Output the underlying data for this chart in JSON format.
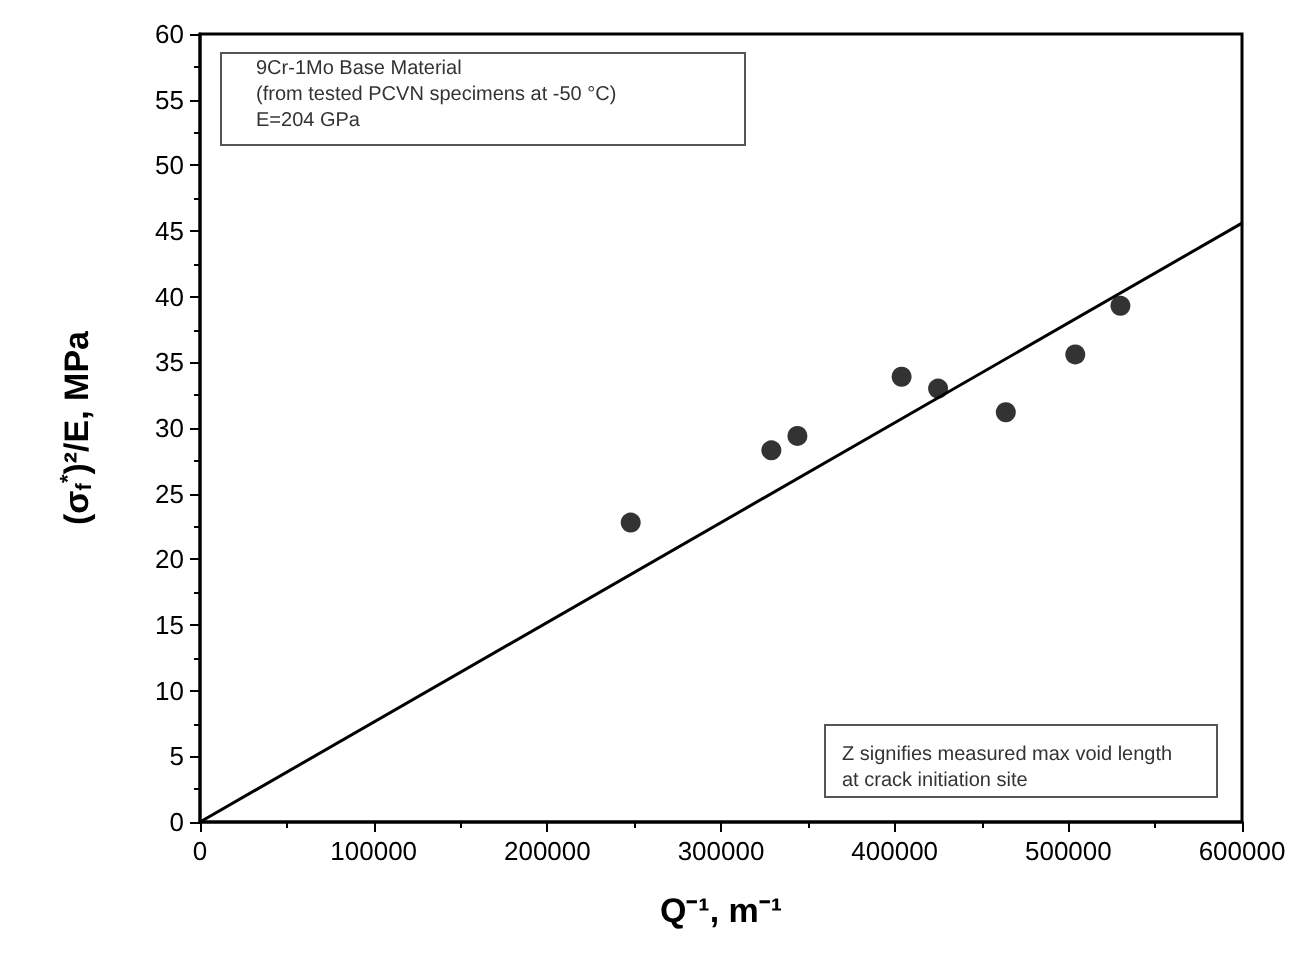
{
  "chart_data": {
    "type": "scatter",
    "xlabel": "Q⁻¹, m⁻¹",
    "ylabel": "(σ$_{f}$$^{*}$)²/E, MPa",
    "annotations": [
      "9Cr-1Mo Base Material",
      "(from tested PCVN specimens at -50 °C)",
      "E=204 GPa",
      "Z signifies measured max void length at crack initiation site"
    ],
    "series": [
      {
        "color": "#000000",
        "marker": "circle",
        "x": [
          248000,
          329000,
          344000,
          404000,
          425000,
          464000,
          504000,
          530000
        ],
        "values": [
          22.8,
          28.3,
          29.4,
          33.9,
          33.0,
          31.2,
          35.6,
          39.3
        ]
      },
      {
        "type": "line",
        "color": "#000000",
        "marker": "none",
        "line_style": "solid",
        "x": [
          0,
          600000
        ],
        "values": [
          0,
          45.6
        ]
      }
    ],
    "xlim": [
      0,
      600000
    ],
    "xticks": [
      0,
      100000,
      200000,
      300000,
      400000,
      500000,
      600000
    ],
    "ylim": [
      0,
      60
    ],
    "yticks": [
      0,
      5,
      10,
      15,
      20,
      25,
      30,
      35,
      40,
      45,
      50,
      55,
      60
    ],
    "grid": false
  }
}
